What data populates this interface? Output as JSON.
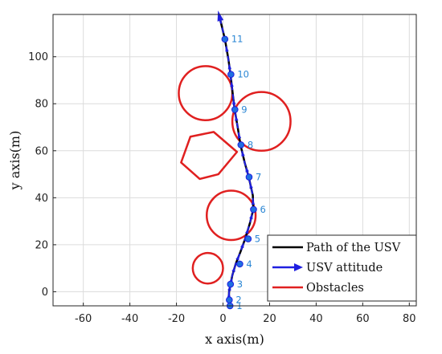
{
  "chart_data": {
    "type": "line",
    "xlabel": "x axis(m)",
    "ylabel": "y axis(m)",
    "xlim": [
      -73,
      83
    ],
    "ylim": [
      -6,
      118
    ],
    "x_ticks": [
      -60,
      -40,
      -20,
      0,
      20,
      40,
      60,
      80
    ],
    "y_ticks": [
      0,
      20,
      40,
      60,
      80,
      100
    ],
    "grid": true,
    "legend": {
      "placement": "bottom-right",
      "entries": [
        {
          "label": "Path of the USV",
          "color": "#000000",
          "style": "line"
        },
        {
          "label": "USV attitude",
          "color": "#1f1fe0",
          "style": "arrow"
        },
        {
          "label": "Obstacles",
          "color": "#e02020",
          "style": "line"
        }
      ]
    },
    "path": [
      {
        "x": 3,
        "y": -6
      },
      {
        "x": 2.5,
        "y": -3
      },
      {
        "x": 2.6,
        "y": 0
      },
      {
        "x": 3.2,
        "y": 3
      },
      {
        "x": 4,
        "y": 7
      },
      {
        "x": 5.5,
        "y": 12
      },
      {
        "x": 7.5,
        "y": 17
      },
      {
        "x": 9.5,
        "y": 22.5
      },
      {
        "x": 11.5,
        "y": 29
      },
      {
        "x": 13,
        "y": 35
      },
      {
        "x": 12.8,
        "y": 41
      },
      {
        "x": 11,
        "y": 49
      },
      {
        "x": 9.3,
        "y": 55
      },
      {
        "x": 7.5,
        "y": 62.5
      },
      {
        "x": 6.3,
        "y": 70
      },
      {
        "x": 5,
        "y": 77.5
      },
      {
        "x": 4.2,
        "y": 84
      },
      {
        "x": 3.2,
        "y": 92.5
      },
      {
        "x": 2.3,
        "y": 99
      },
      {
        "x": 0.8,
        "y": 107.5
      },
      {
        "x": -1.5,
        "y": 117
      }
    ],
    "waypoints": [
      {
        "label": "1",
        "x": 3.0,
        "y": -6
      },
      {
        "label": "2",
        "x": 2.7,
        "y": -3.5
      },
      {
        "label": "3",
        "x": 3.2,
        "y": 3.2
      },
      {
        "label": "4",
        "x": 7.2,
        "y": 11.8
      },
      {
        "label": "5",
        "x": 10.8,
        "y": 22.5
      },
      {
        "label": "6",
        "x": 13.1,
        "y": 35.0
      },
      {
        "label": "7",
        "x": 11.2,
        "y": 48.8
      },
      {
        "label": "8",
        "x": 7.7,
        "y": 62.5
      },
      {
        "label": "9",
        "x": 5.1,
        "y": 77.5
      },
      {
        "label": "10",
        "x": 3.4,
        "y": 92.5
      },
      {
        "label": "11",
        "x": 0.8,
        "y": 107.5
      }
    ],
    "obstacles": [
      {
        "shape": "circle",
        "cx": -7.5,
        "cy": 84.5,
        "r": 11.5
      },
      {
        "shape": "circle",
        "cx": 16.5,
        "cy": 72.5,
        "r": 12.5
      },
      {
        "shape": "circle",
        "cx": 3.5,
        "cy": 32.5,
        "r": 10.5
      },
      {
        "shape": "circle",
        "cx": -6.5,
        "cy": 10,
        "r": 6.5
      },
      {
        "shape": "polygon",
        "points": [
          [
            -14,
            66
          ],
          [
            -4,
            68
          ],
          [
            6,
            59.5
          ],
          [
            -2,
            50
          ],
          [
            -10,
            48
          ],
          [
            -18,
            55
          ]
        ]
      }
    ]
  }
}
